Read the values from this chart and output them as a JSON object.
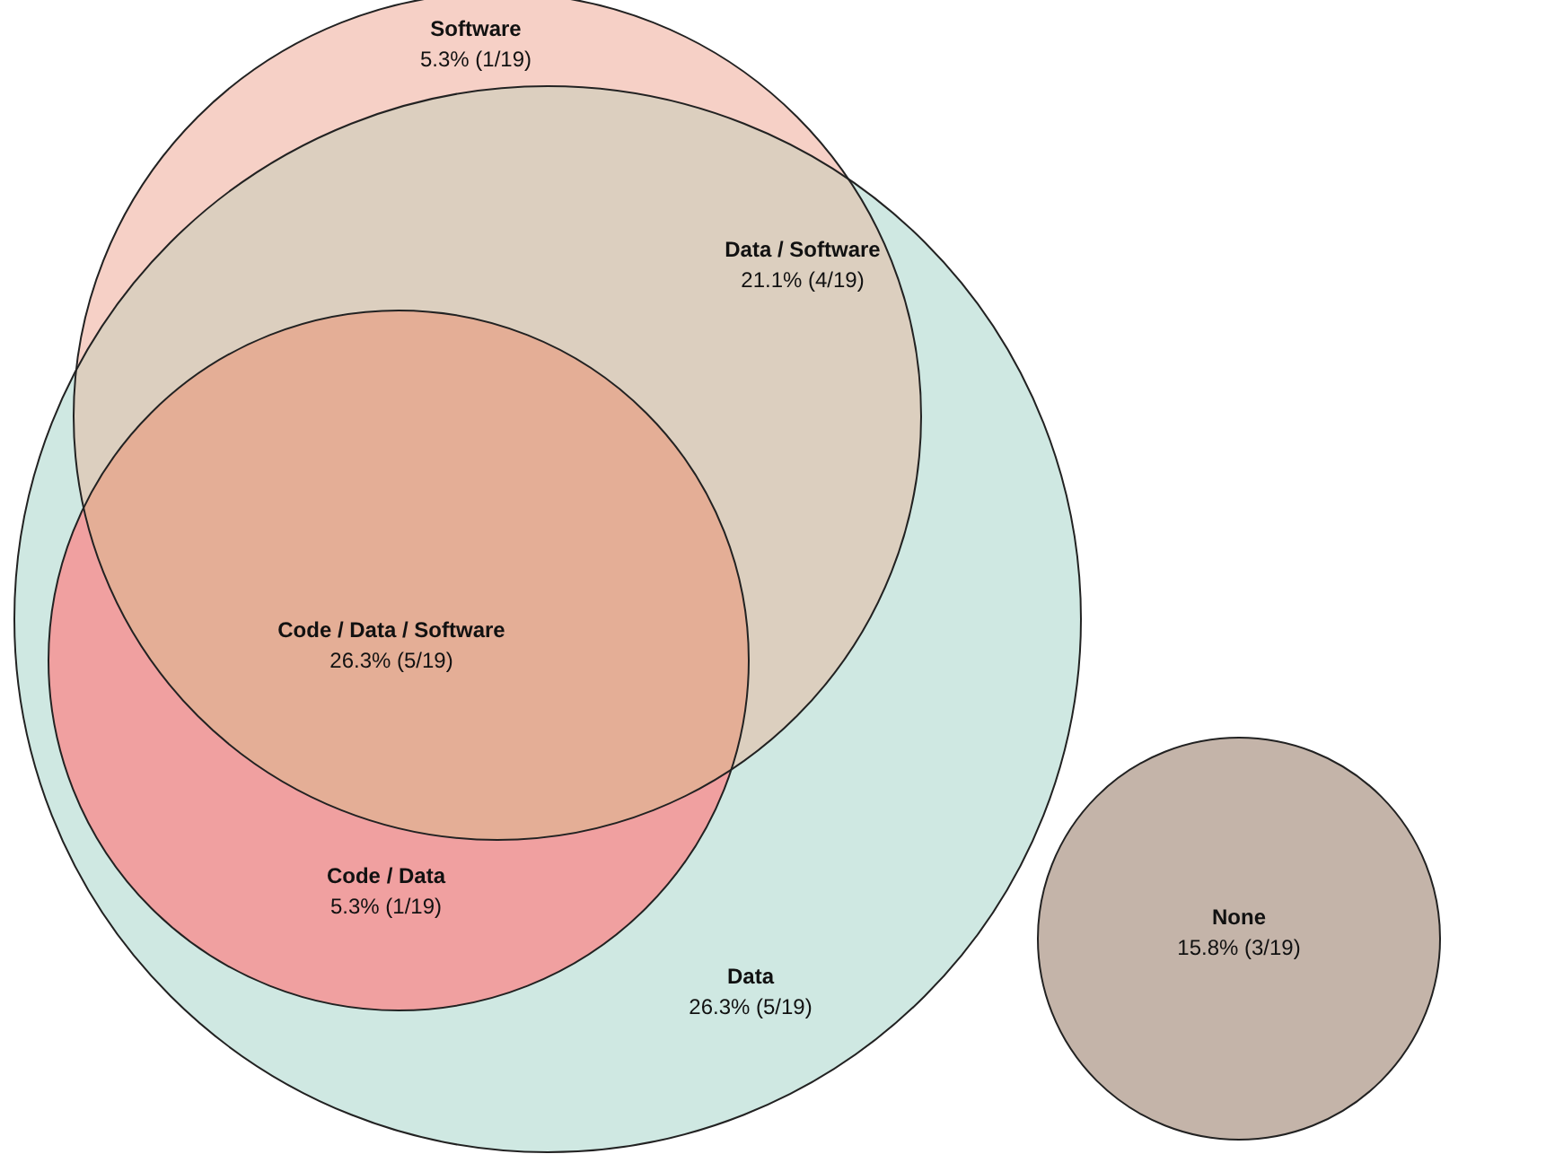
{
  "chart_data": {
    "type": "other",
    "categories": [
      "Software",
      "Data / Software",
      "Code / Data / Software",
      "Code / Data",
      "Data",
      "None"
    ],
    "values": [
      5.3,
      21.1,
      26.3,
      5.3,
      26.3,
      15.8
    ],
    "value_labels": [
      "5.3% (1/19)",
      "21.1% (4/19)",
      "26.3% (5/19)",
      "5.3% (1/19)",
      "26.3% (5/19)",
      "15.8% (3/19)"
    ],
    "colors": [
      "#f6d0c6",
      "#dccfbf",
      "#e4ae96",
      "#f0a0a0",
      "#cfe8e2",
      "#c4b4a9"
    ]
  }
}
